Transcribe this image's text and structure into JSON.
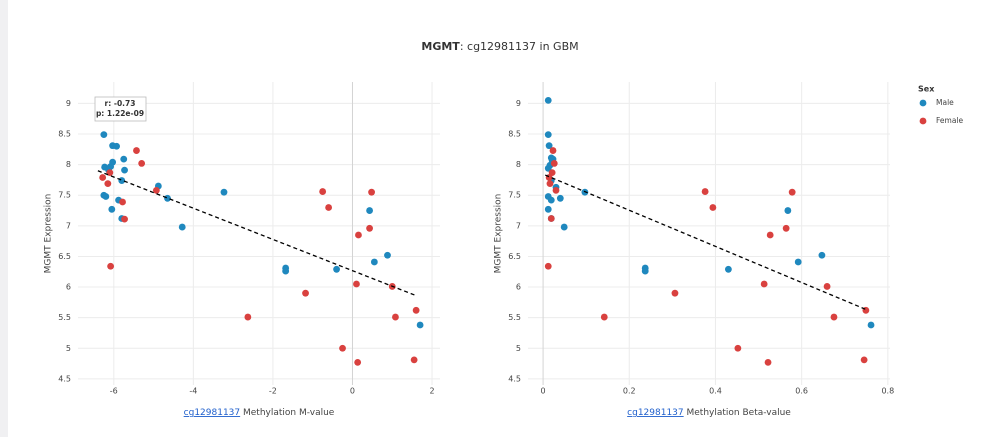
{
  "title": {
    "bold": "MGMT",
    "text": ": cg12981137 in GBM"
  },
  "legend_title": "Sex",
  "chart_data": [
    {
      "type": "scatter",
      "xlabel_link": "cg12981137",
      "xlabel": " Methylation M-value",
      "ylabel": "MGMT Expression",
      "annotation": [
        "r: -0.73",
        "p: 1.22e-09"
      ],
      "xlim": [
        -6.9,
        2.2
      ],
      "ylim": [
        4.4,
        9.35
      ],
      "xticks": [
        -6,
        -4,
        -2,
        0,
        2
      ],
      "yticks": [
        4.5,
        5,
        5.5,
        6,
        6.5,
        7,
        7.5,
        8,
        8.5,
        9
      ],
      "grid": true,
      "fit_x": [
        -6.4,
        1.6
      ],
      "fit_y": [
        7.9,
        5.86
      ],
      "series": [
        {
          "name": "Male",
          "color": "#1f88be",
          "x": [
            -6.25,
            -6.03,
            -5.93,
            -6.23,
            -6.08,
            -6.03,
            -5.75,
            -6.13,
            -6.2,
            -6.25,
            -5.8,
            -5.73,
            -6.05,
            -5.88,
            -5.8,
            -4.88,
            -4.65,
            -4.28,
            -3.23,
            -1.68,
            -1.68,
            -0.4,
            0.43,
            0.55,
            0.88,
            1.7
          ],
          "values": [
            8.49,
            8.31,
            8.3,
            7.96,
            7.97,
            8.04,
            8.09,
            7.91,
            7.48,
            7.5,
            7.74,
            7.91,
            7.27,
            7.42,
            7.12,
            7.65,
            7.45,
            6.98,
            7.55,
            6.31,
            6.26,
            6.29,
            7.25,
            6.41,
            6.52,
            5.38
          ]
        },
        {
          "name": "Female",
          "color": "#d9413f",
          "x": [
            -6.28,
            -6.15,
            -6.1,
            -5.43,
            -5.3,
            -6.08,
            -5.78,
            -5.73,
            -4.93,
            -2.63,
            -1.18,
            -0.75,
            -0.6,
            -0.25,
            0.1,
            0.15,
            0.13,
            0.43,
            0.48,
            1.0,
            1.08,
            1.6,
            1.55
          ],
          "values": [
            7.79,
            7.69,
            7.87,
            8.23,
            8.02,
            6.34,
            7.39,
            7.11,
            7.58,
            5.51,
            5.9,
            7.56,
            7.3,
            5.0,
            6.05,
            6.85,
            4.77,
            6.96,
            7.55,
            6.01,
            5.51,
            5.62,
            4.81
          ]
        }
      ]
    },
    {
      "type": "scatter",
      "xlabel_link": "cg12981137",
      "xlabel": " Methylation Beta-value",
      "ylabel": "MGMT Expression",
      "xlim": [
        -0.035,
        0.805
      ],
      "ylim": [
        4.4,
        9.35
      ],
      "xticks": [
        0,
        0.2,
        0.4,
        0.6,
        0.8
      ],
      "yticks": [
        4.5,
        5,
        5.5,
        6,
        6.5,
        7,
        7.5,
        8,
        8.5,
        9
      ],
      "grid": true,
      "fit_x": [
        0.005,
        0.754
      ],
      "fit_y": [
        7.83,
        5.62
      ],
      "series": [
        {
          "name": "Male",
          "color": "#1f88be",
          "x": [
            0.012,
            0.012,
            0.014,
            0.016,
            0.021,
            0.019,
            0.012,
            0.023,
            0.012,
            0.019,
            0.012,
            0.019,
            0.03,
            0.04,
            0.049,
            0.097,
            0.237,
            0.237,
            0.43,
            0.568,
            0.592,
            0.647,
            0.761,
            0.019
          ],
          "values": [
            9.05,
            8.49,
            8.31,
            7.99,
            8.07,
            8.11,
            7.94,
            8.09,
            7.48,
            7.42,
            7.27,
            7.74,
            7.63,
            7.45,
            6.98,
            7.55,
            6.31,
            6.26,
            6.29,
            7.25,
            6.41,
            6.52,
            5.38,
            7.12
          ]
        },
        {
          "name": "Female",
          "color": "#d9413f",
          "x": [
            0.014,
            0.016,
            0.023,
            0.026,
            0.012,
            0.019,
            0.03,
            0.021,
            0.142,
            0.306,
            0.376,
            0.394,
            0.452,
            0.513,
            0.527,
            0.522,
            0.564,
            0.578,
            0.659,
            0.675,
            0.749,
            0.745
          ],
          "values": [
            7.79,
            7.69,
            8.23,
            8.02,
            6.34,
            7.12,
            7.58,
            7.87,
            5.51,
            5.9,
            7.56,
            7.3,
            5.0,
            6.05,
            6.85,
            4.77,
            6.96,
            7.55,
            6.01,
            5.51,
            5.62,
            4.81
          ]
        }
      ]
    }
  ]
}
